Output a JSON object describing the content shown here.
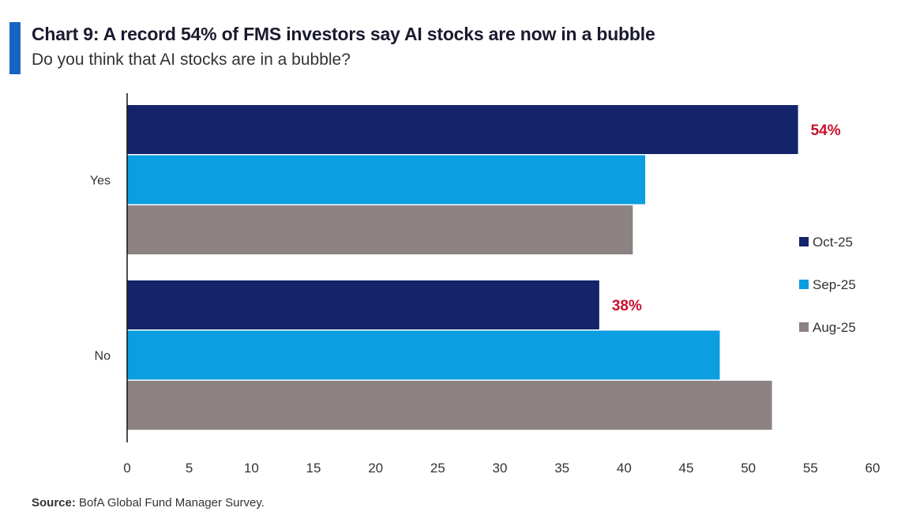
{
  "header": {
    "title": "Chart 9: A record 54% of FMS investors say AI stocks are now in a bubble",
    "subtitle": "Do you think that AI stocks are in a bubble?"
  },
  "footer": {
    "source_label": "Source:",
    "source_text": "BofA Global Fund Manager Survey."
  },
  "chart_data": {
    "type": "bar",
    "orientation": "horizontal",
    "title": "Chart 9: A record 54% of FMS investors say AI stocks are now in a bubble",
    "subtitle": "Do you think that AI stocks are in a bubble?",
    "categories": [
      "Yes",
      "No"
    ],
    "series": [
      {
        "name": "Oct-25",
        "color": "#14246b",
        "values": [
          54,
          38
        ]
      },
      {
        "name": "Sep-25",
        "color": "#0b9ee0",
        "values": [
          41.7,
          47.7
        ]
      },
      {
        "name": "Aug-25",
        "color": "#8c8282",
        "values": [
          40.7,
          51.9
        ]
      }
    ],
    "annotations": [
      {
        "category": "Yes",
        "series": "Oct-25",
        "text": "54%",
        "color": "#c8102e"
      },
      {
        "category": "No",
        "series": "Oct-25",
        "text": "38%",
        "color": "#c8102e"
      }
    ],
    "xlim": [
      0,
      60
    ],
    "xticks": [
      0,
      5,
      10,
      15,
      20,
      25,
      30,
      35,
      40,
      45,
      50,
      55,
      60
    ],
    "xlabel": "",
    "ylabel": "",
    "grid": false,
    "legend_position": "right"
  }
}
